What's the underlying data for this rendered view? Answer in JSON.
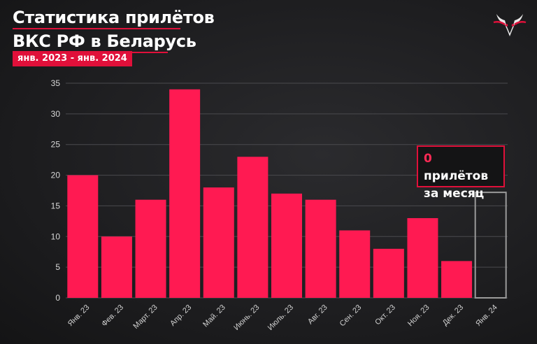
{
  "header": {
    "title_line1": "Статистика прилётов",
    "title_line2": "ВКС РФ в Беларусь",
    "period": "янв. 2023 - янв. 2024"
  },
  "logo": {
    "icon": "bull-skull-logo-icon"
  },
  "callout": {
    "count": "0",
    "text_line1": " прилётов",
    "text_line2": "за месяц"
  },
  "colors": {
    "bar": "#ff1a52",
    "accent": "#e0103a",
    "empty_bar_outline": "#9a9a9a"
  },
  "chart_data": {
    "type": "bar",
    "title": "",
    "xlabel": "",
    "ylabel": "",
    "ylim": [
      0,
      35
    ],
    "yticks": [
      0,
      5,
      10,
      15,
      20,
      25,
      30,
      35
    ],
    "grid": true,
    "categories": [
      "Янв. 23",
      "Фев. 23",
      "Март. 23",
      "Апр. 23",
      "Май. 23",
      "Июнь. 23",
      "Июль. 23",
      "Авг. 23",
      "Сен. 23",
      "Окт. 23",
      "Ноя. 23",
      "Дек. 23",
      "Янв. 24"
    ],
    "values": [
      20,
      10,
      16,
      34,
      18,
      23,
      17,
      16,
      11,
      8,
      13,
      6,
      0
    ]
  }
}
